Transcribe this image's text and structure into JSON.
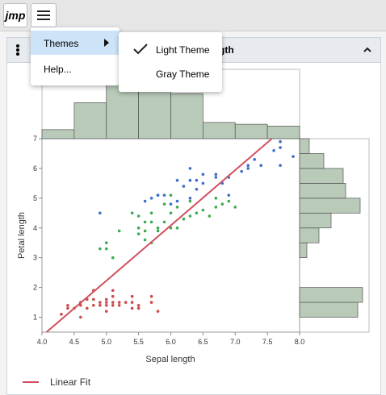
{
  "toolbar": {
    "logo": "jmp"
  },
  "menu": {
    "items": [
      "Themes",
      "Help..."
    ],
    "submenu": [
      "Light Theme",
      "Gray Theme"
    ]
  },
  "panel": {
    "title": "gth"
  },
  "chart_data": {
    "type": "scatter",
    "xlabel": "Sepal length",
    "ylabel": "Petal length",
    "xlim": [
      4,
      8
    ],
    "ylim": [
      0.5,
      7
    ],
    "xticks": [
      {
        "value": 4,
        "label": "4.0"
      },
      {
        "value": 4.5,
        "label": "4.5"
      },
      {
        "value": 5,
        "label": "5.0"
      },
      {
        "value": 5.5,
        "label": "5.5"
      },
      {
        "value": 6,
        "label": "6.0"
      },
      {
        "value": 6.5,
        "label": "6.5"
      },
      {
        "value": 7,
        "label": "7.0"
      },
      {
        "value": 7.5,
        "label": "7.5"
      },
      {
        "value": 8,
        "label": "8.0"
      }
    ],
    "yticks": [
      1,
      2,
      3,
      4,
      5,
      6,
      7
    ],
    "series": [
      {
        "color": "#cc4b4b",
        "x": [
          4.3,
          4.4,
          4.4,
          4.5,
          4.6,
          4.6,
          4.6,
          4.7,
          4.7,
          4.8,
          4.8,
          4.8,
          4.9,
          4.9,
          5.0,
          5.0,
          5.0,
          5.0,
          5.1,
          5.1,
          5.1,
          5.1,
          5.2,
          5.2,
          5.3,
          5.4,
          5.4,
          5.4,
          5.5,
          5.5,
          5.7,
          5.7,
          5.8
        ],
        "values": [
          1.1,
          1.4,
          1.3,
          1.3,
          1.4,
          1.5,
          1.0,
          1.3,
          1.6,
          1.4,
          1.6,
          1.9,
          1.4,
          1.5,
          1.4,
          1.6,
          1.2,
          1.5,
          1.4,
          1.5,
          1.7,
          1.9,
          1.5,
          1.4,
          1.5,
          1.7,
          1.5,
          1.3,
          1.4,
          1.3,
          1.5,
          1.7,
          1.2
        ]
      },
      {
        "color": "#3cab4e",
        "x": [
          4.9,
          5.0,
          5.0,
          5.1,
          5.2,
          5.4,
          5.5,
          5.5,
          5.5,
          5.6,
          5.6,
          5.6,
          5.7,
          5.7,
          5.7,
          5.8,
          5.8,
          5.9,
          5.9,
          6.0,
          6.0,
          6.0,
          6.1,
          6.1,
          6.2,
          6.3,
          6.3,
          6.4,
          6.5,
          6.6,
          6.7,
          6.7,
          6.8,
          6.9,
          7.0
        ],
        "values": [
          3.3,
          3.5,
          3.3,
          3.0,
          3.9,
          4.5,
          4.0,
          3.8,
          4.4,
          3.6,
          3.9,
          4.2,
          3.5,
          4.2,
          4.5,
          4.0,
          3.9,
          4.8,
          4.2,
          4.0,
          4.5,
          5.1,
          4.7,
          4.0,
          4.3,
          4.9,
          4.4,
          4.5,
          4.6,
          4.4,
          4.7,
          5.0,
          4.8,
          4.9,
          4.7
        ]
      },
      {
        "color": "#3b6fc9",
        "x": [
          4.9,
          5.6,
          5.7,
          5.8,
          5.8,
          6.0,
          6.1,
          6.2,
          6.3,
          6.3,
          6.4,
          6.4,
          6.5,
          6.5,
          6.7,
          6.7,
          6.8,
          6.9,
          6.9,
          7.1,
          7.2,
          7.2,
          7.3,
          7.4,
          7.6,
          7.7,
          7.7,
          7.9,
          7.7,
          6.3,
          6.1,
          5.9
        ],
        "values": [
          4.5,
          4.9,
          5.0,
          5.1,
          5.1,
          4.8,
          5.6,
          5.4,
          5.6,
          6.0,
          5.3,
          5.6,
          5.8,
          5.5,
          5.7,
          5.8,
          5.5,
          5.7,
          5.1,
          5.9,
          6.0,
          6.1,
          6.3,
          6.1,
          6.6,
          6.7,
          6.9,
          6.4,
          6.1,
          5.0,
          4.9,
          5.1
        ]
      }
    ],
    "fit": {
      "name": "Linear Fit",
      "color": "#d0505f",
      "x": [
        4.07,
        7.57
      ],
      "values": [
        0.5,
        7
      ]
    },
    "top_hist": {
      "color": "#b9cab9",
      "bins": [
        4,
        4.5,
        5,
        5.5,
        6,
        6.5,
        7,
        7.5,
        8
      ],
      "counts": [
        5,
        20,
        30,
        30,
        25,
        9,
        8,
        7
      ]
    },
    "right_hist": {
      "color": "#b9cab9",
      "bins": [
        0.5,
        1,
        1.5,
        2,
        2.5,
        3,
        3.5,
        4,
        4.5,
        5,
        5.5,
        6,
        6.5,
        7
      ],
      "counts": [
        0,
        24,
        26,
        0,
        0,
        3,
        8,
        13,
        25,
        19,
        18,
        10,
        4
      ]
    }
  }
}
